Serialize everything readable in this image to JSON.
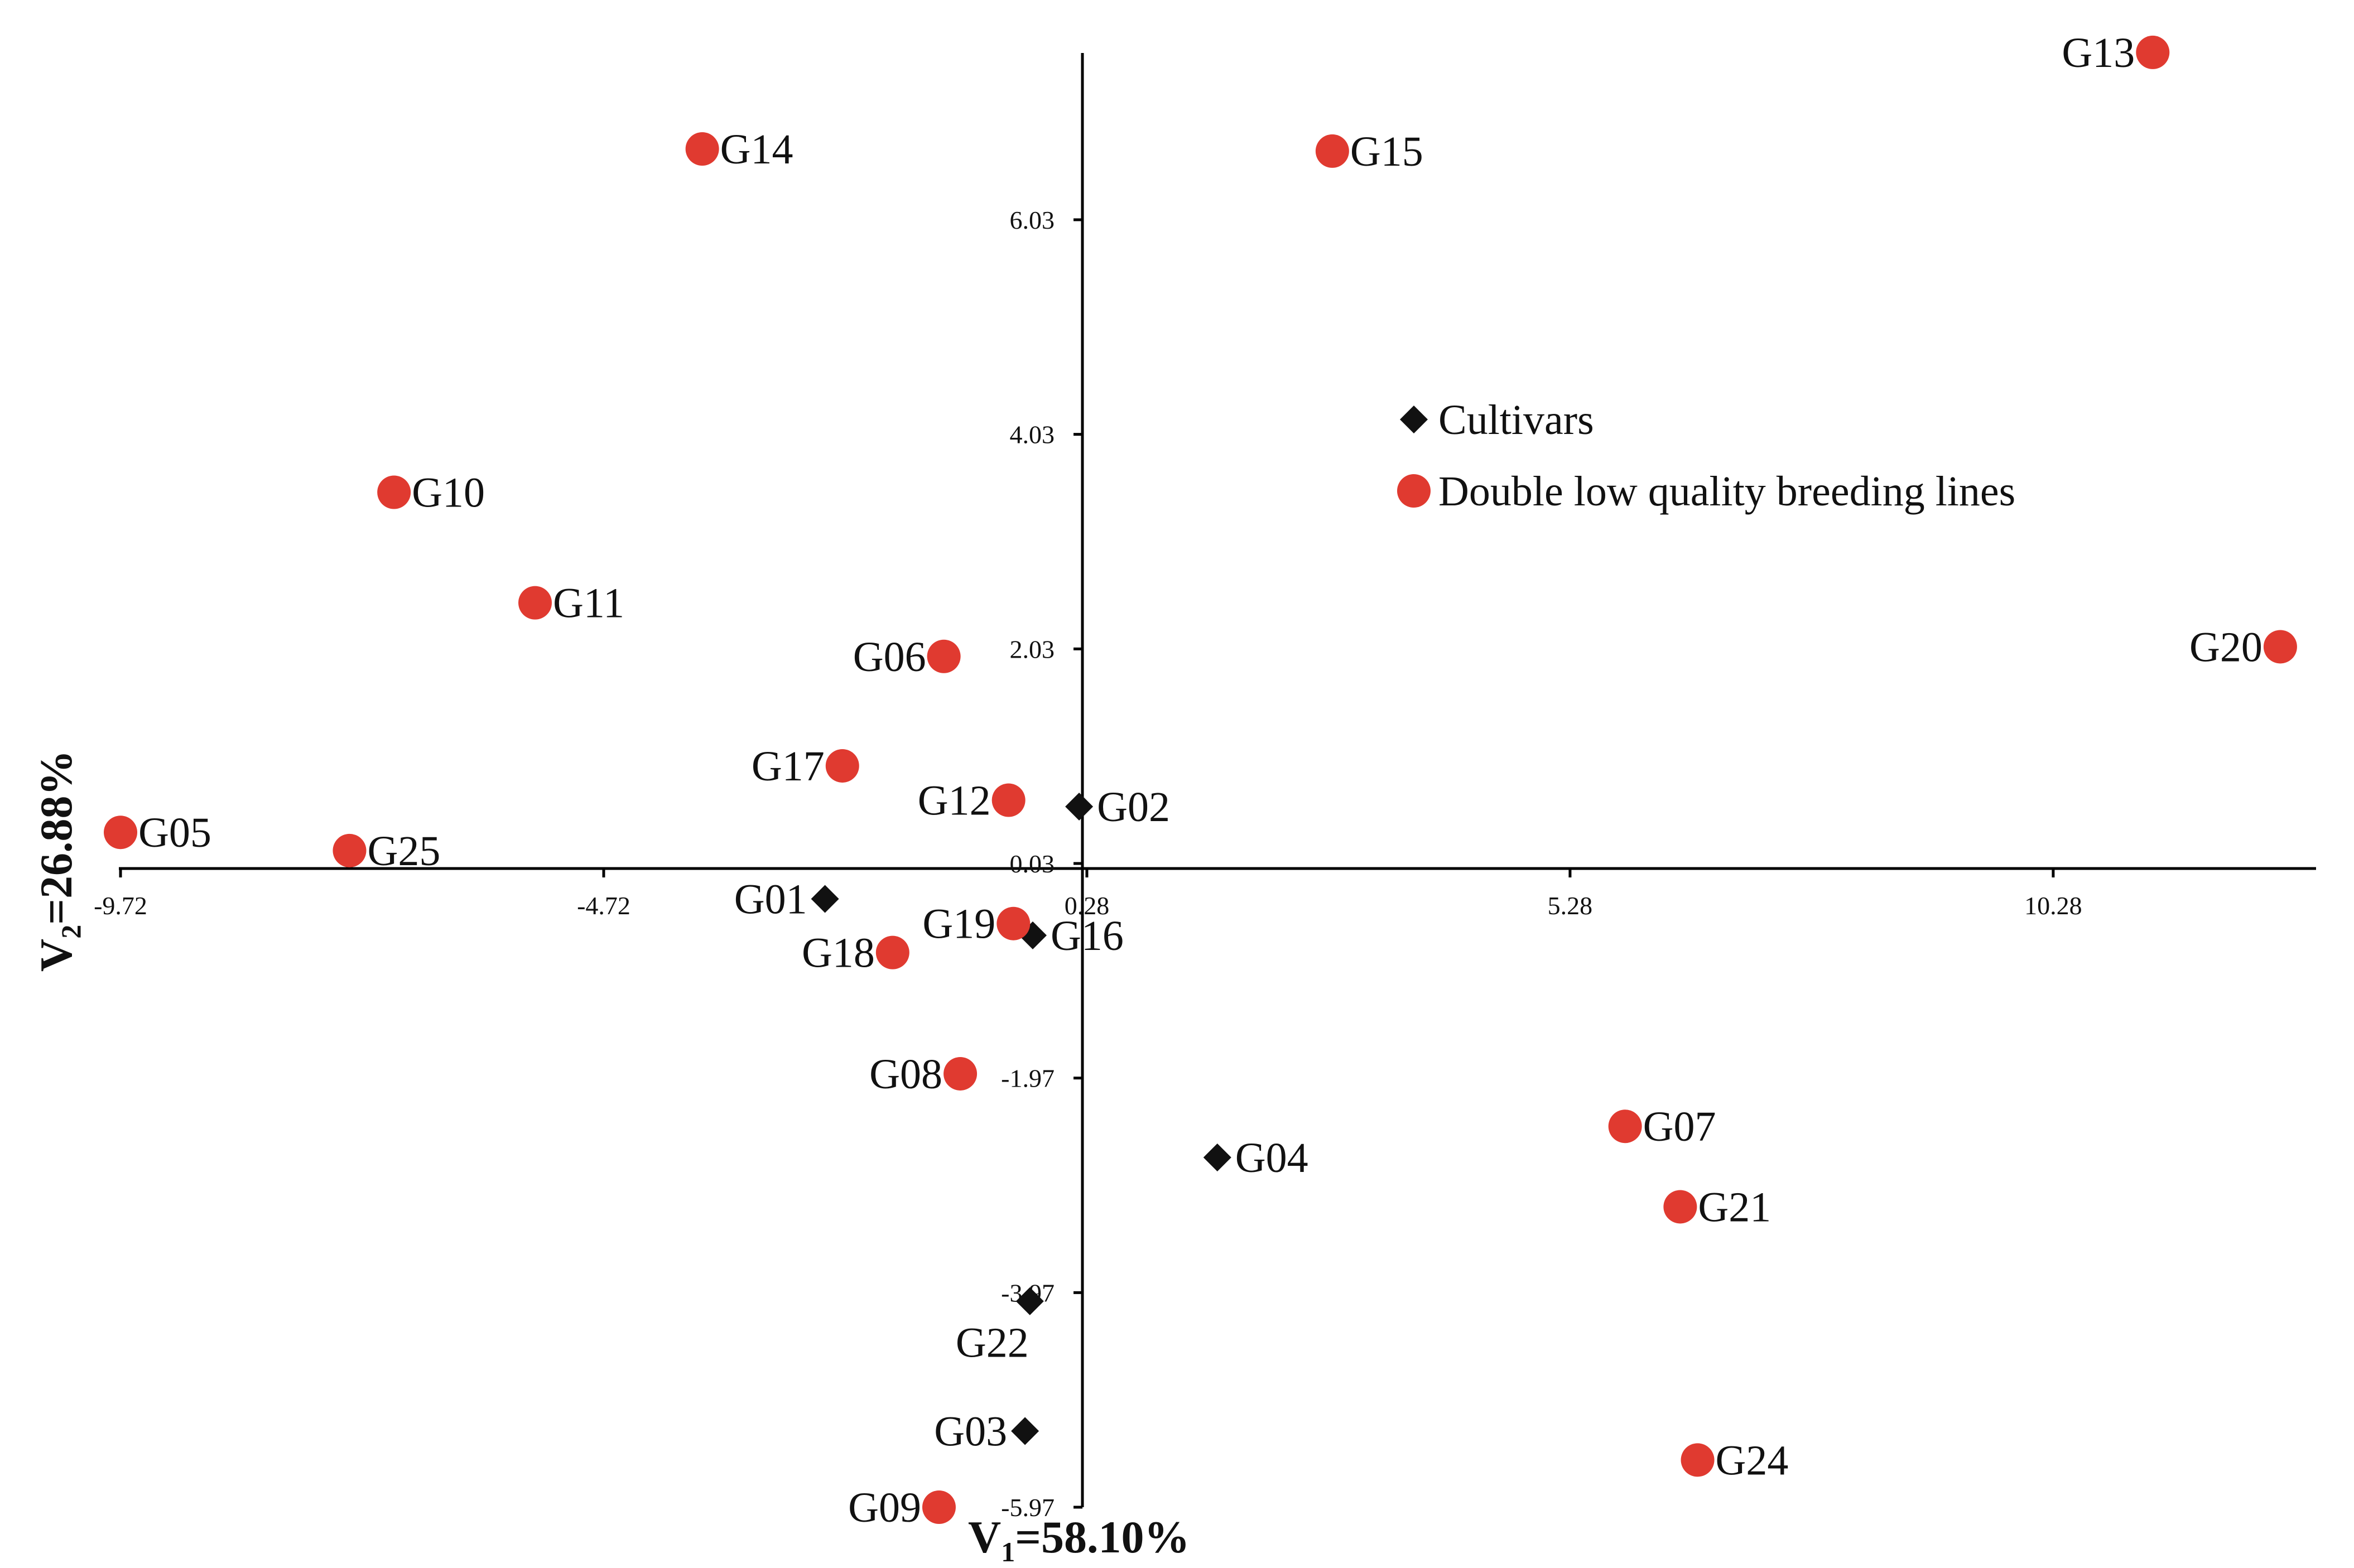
{
  "chart_data": {
    "type": "scatter",
    "title": "",
    "xlabel": {
      "base": "V",
      "sub": "1",
      "rest": "=58.10%"
    },
    "ylabel": {
      "base": "V",
      "sub": "2",
      "rest": "=26.88%"
    },
    "xlim": [
      -9.72,
      13.0
    ],
    "ylim": [
      -5.97,
      7.6
    ],
    "x_ticks": [
      {
        "value": -9.72,
        "label": "-9.72"
      },
      {
        "value": -4.72,
        "label": "-4.72"
      },
      {
        "value": 0.28,
        "label": "0.28"
      },
      {
        "value": 5.28,
        "label": "5.28"
      },
      {
        "value": 10.28,
        "label": "10.28"
      }
    ],
    "y_ticks": [
      {
        "value": -5.97,
        "label": "-5.97"
      },
      {
        "value": -3.97,
        "label": "-3.97"
      },
      {
        "value": -1.97,
        "label": "-1.97"
      },
      {
        "value": 0.03,
        "label": "0.03"
      },
      {
        "value": 2.03,
        "label": "2.03"
      },
      {
        "value": 4.03,
        "label": "4.03"
      },
      {
        "value": 6.03,
        "label": "6.03"
      }
    ],
    "legend": {
      "position": "center",
      "entries": [
        {
          "key": "cultivars",
          "label": "Cultivars",
          "marker": "diamond",
          "color": "#111111"
        },
        {
          "key": "breeding",
          "label": "Double low quality breeding lines",
          "marker": "circle",
          "color": "#e03a30"
        }
      ]
    },
    "series": [
      {
        "name": "Cultivars",
        "marker": "diamond",
        "color": "#111111",
        "points": [
          {
            "label": "G01",
            "x": -2.43,
            "y": -0.3,
            "label_side": "left"
          },
          {
            "label": "G02",
            "x": 0.2,
            "y": 0.56,
            "label_side": "right"
          },
          {
            "label": "G03",
            "x": -0.36,
            "y": -5.26,
            "label_side": "left"
          },
          {
            "label": "G04",
            "x": 1.63,
            "y": -2.71,
            "label_side": "right"
          },
          {
            "label": "G16",
            "x": -0.28,
            "y": -0.64,
            "label_side": "right"
          },
          {
            "label": "G22",
            "x": -0.31,
            "y": -4.05,
            "label_side": "below-left"
          }
        ]
      },
      {
        "name": "Double low quality breeding lines",
        "marker": "circle",
        "color": "#e03a30",
        "points": [
          {
            "label": "G05",
            "x": -9.72,
            "y": 0.32,
            "label_side": "right"
          },
          {
            "label": "G06",
            "x": -1.2,
            "y": 1.96,
            "label_side": "left"
          },
          {
            "label": "G07",
            "x": 5.85,
            "y": -2.42,
            "label_side": "right"
          },
          {
            "label": "G08",
            "x": -1.03,
            "y": -1.93,
            "label_side": "left"
          },
          {
            "label": "G09",
            "x": -1.25,
            "y": -5.97,
            "label_side": "left"
          },
          {
            "label": "G10",
            "x": -6.89,
            "y": 3.49,
            "label_side": "right"
          },
          {
            "label": "G11",
            "x": -5.43,
            "y": 2.46,
            "label_side": "right"
          },
          {
            "label": "G12",
            "x": -0.53,
            "y": 0.62,
            "label_side": "left"
          },
          {
            "label": "G13",
            "x": 11.31,
            "y": 7.59,
            "label_side": "left"
          },
          {
            "label": "G14",
            "x": -3.7,
            "y": 6.69,
            "label_side": "right"
          },
          {
            "label": "G15",
            "x": 2.82,
            "y": 6.67,
            "label_side": "right"
          },
          {
            "label": "G17",
            "x": -2.25,
            "y": 0.94,
            "label_side": "left"
          },
          {
            "label": "G18",
            "x": -1.73,
            "y": -0.8,
            "label_side": "left"
          },
          {
            "label": "G19",
            "x": -0.48,
            "y": -0.53,
            "label_side": "left"
          },
          {
            "label": "G20",
            "x": 12.63,
            "y": 2.05,
            "label_side": "left"
          },
          {
            "label": "G21",
            "x": 6.42,
            "y": -3.17,
            "label_side": "right"
          },
          {
            "label": "G24",
            "x": 6.6,
            "y": -5.53,
            "label_side": "right"
          },
          {
            "label": "G25",
            "x": -7.35,
            "y": 0.15,
            "label_side": "right"
          }
        ]
      }
    ]
  }
}
